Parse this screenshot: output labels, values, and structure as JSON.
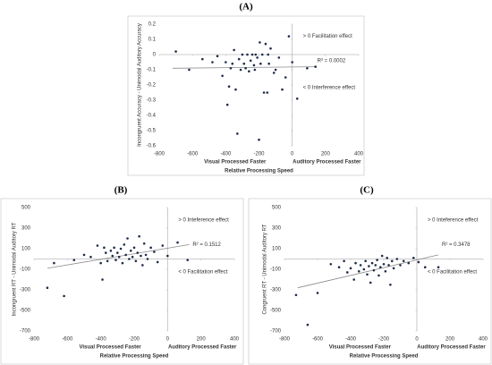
{
  "chart_data": [
    {
      "type": "scatter",
      "panel_label": "(A)",
      "y_label": "Incongruent Accuracy - Unimodal Auditory Accuracy",
      "x_label": "Relative Processing Speed",
      "x_sublabels": [
        "Visual Processed Faster",
        "Auditory Processed Faster"
      ],
      "annotations": [
        "> 0 Facilitation effect",
        "R² = 0.0002",
        "< 0 Interference effect"
      ],
      "color": "#1f2d4a",
      "xlim": [
        -800,
        400
      ],
      "xticks": [
        -800,
        -600,
        -400,
        -200,
        0,
        200,
        400
      ],
      "ylim": [
        -0.6,
        0.2
      ],
      "yticks": [
        0.2,
        0.1,
        0,
        -0.1,
        -0.2,
        -0.3,
        -0.4,
        -0.5,
        -0.6
      ],
      "x": [
        -700,
        -620,
        -540,
        -480,
        -450,
        -420,
        -400,
        -390,
        -380,
        -370,
        -360,
        -350,
        -340,
        -330,
        -320,
        -310,
        -300,
        -290,
        -280,
        -270,
        -260,
        -250,
        -240,
        -230,
        -225,
        -220,
        -210,
        -200,
        -195,
        -190,
        -180,
        -170,
        -160,
        -150,
        -145,
        -140,
        -130,
        -110,
        -100,
        -80,
        -60,
        -40,
        -20,
        0,
        30,
        90,
        140
      ],
      "values": [
        0.02,
        -0.1,
        -0.03,
        -0.05,
        -0.01,
        -0.14,
        -0.05,
        -0.33,
        -0.21,
        -0.09,
        -0.06,
        0.03,
        -0.23,
        -0.52,
        -0.03,
        -0.1,
        0,
        -0.06,
        -0.09,
        0,
        -0.11,
        -0.04,
        0,
        -0.07,
        -0.1,
        0,
        -0.02,
        -0.56,
        0.08,
        -0.06,
        0,
        -0.25,
        0.07,
        -0.25,
        0,
        -0.06,
        0.04,
        -0.12,
        -0.1,
        -0.02,
        -0.23,
        -0.15,
        0.12,
        -0.05,
        -0.29,
        -0.09,
        -0.08
      ],
      "trendline": {
        "x": [
          -720,
          140
        ],
        "y": [
          -0.09,
          -0.08
        ]
      }
    },
    {
      "type": "scatter",
      "panel_label": "(B)",
      "y_label": "Incongruent RT - Unimodal Auditory RT",
      "x_label": "Relative Processing Speed",
      "x_sublabels": [
        "Visual Processed Faster",
        "Auditory Processed Faster"
      ],
      "annotations": [
        "> 0 Inteference effect",
        "R² = 0.1512",
        "< 0 Facilitation effect"
      ],
      "color": "#1f2d4a",
      "xlim": [
        -800,
        400
      ],
      "xticks": [
        -800,
        -600,
        -400,
        -200,
        0,
        200,
        400
      ],
      "ylim": [
        -700,
        500
      ],
      "yticks": [
        500,
        300,
        100,
        -100,
        -300,
        -500,
        -700
      ],
      "x": [
        -720,
        -680,
        -620,
        -560,
        -500,
        -460,
        -420,
        -400,
        -390,
        -380,
        -370,
        -360,
        -340,
        -330,
        -320,
        -310,
        -300,
        -290,
        -280,
        -270,
        -260,
        -250,
        -240,
        -230,
        -220,
        -210,
        -200,
        -190,
        -180,
        -170,
        -160,
        -150,
        -140,
        -130,
        -120,
        -100,
        -80,
        -60,
        -30,
        0,
        60,
        120
      ],
      "values": [
        -280,
        -40,
        -360,
        -10,
        40,
        20,
        130,
        -40,
        -200,
        110,
        60,
        -20,
        80,
        30,
        110,
        -10,
        60,
        20,
        100,
        -40,
        140,
        40,
        200,
        0,
        80,
        20,
        110,
        -20,
        60,
        220,
        30,
        -60,
        150,
        40,
        0,
        110,
        70,
        -30,
        130,
        30,
        160,
        -10
      ],
      "trendline": {
        "x": [
          -720,
          130
        ],
        "y": [
          -90,
          140
        ]
      }
    },
    {
      "type": "scatter",
      "panel_label": "(C)",
      "y_label": "Congruent RT - Unimodal Auditory RT",
      "x_label": "Relative Processing Speed",
      "x_sublabels": [
        "Visual Processed Faster",
        "Auditory Processed Faster"
      ],
      "annotations": [
        "> 0 Inteference effect",
        "R² = 0.3478",
        "< 0 Facilitation effect"
      ],
      "color": "#1f2d4a",
      "xlim": [
        -800,
        400
      ],
      "xticks": [
        -800,
        -600,
        -400,
        -200,
        0,
        200,
        400
      ],
      "ylim": [
        -700,
        500
      ],
      "yticks": [
        500,
        300,
        100,
        -100,
        -300,
        -500,
        -700
      ],
      "x": [
        -730,
        -660,
        -600,
        -520,
        -470,
        -440,
        -420,
        -400,
        -380,
        -370,
        -350,
        -340,
        -320,
        -310,
        -300,
        -290,
        -280,
        -270,
        -260,
        -250,
        -240,
        -230,
        -220,
        -210,
        -200,
        -190,
        -180,
        -170,
        -160,
        -150,
        -140,
        -120,
        -100,
        -80,
        -50,
        -20,
        10,
        50,
        130
      ],
      "values": [
        -350,
        -640,
        -330,
        -50,
        -80,
        -20,
        -130,
        -90,
        -200,
        -40,
        -120,
        -60,
        -100,
        -20,
        -150,
        -70,
        -230,
        -40,
        -110,
        -60,
        -10,
        -160,
        -80,
        30,
        -50,
        -120,
        10,
        -60,
        -250,
        -20,
        -90,
        0,
        -60,
        -20,
        -40,
        10,
        -30,
        -80,
        -80
      ],
      "trendline": {
        "x": [
          -720,
          130
        ],
        "y": [
          -280,
          40
        ]
      }
    }
  ]
}
